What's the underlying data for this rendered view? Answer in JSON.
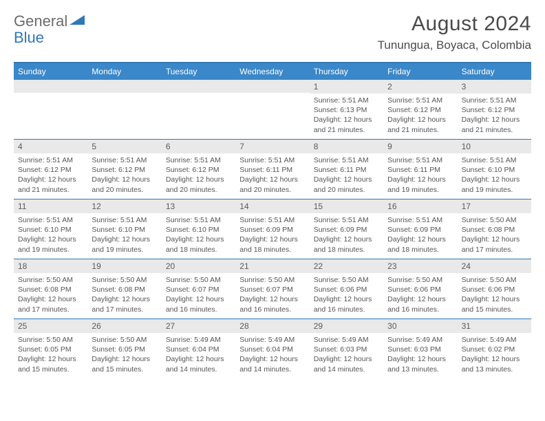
{
  "logo": {
    "general": "General",
    "blue": "Blue"
  },
  "title": {
    "month": "August 2024",
    "location": "Tunungua, Boyaca, Colombia"
  },
  "colors": {
    "brand_blue": "#3a87c9",
    "border_blue": "#2f78b8",
    "grey_band": "#e9e9e9",
    "text_grey": "#555555",
    "title_grey": "#4a4a4a"
  },
  "dow": [
    "Sunday",
    "Monday",
    "Tuesday",
    "Wednesday",
    "Thursday",
    "Friday",
    "Saturday"
  ],
  "weeks": [
    [
      null,
      null,
      null,
      null,
      {
        "n": "1",
        "sr": "Sunrise: 5:51 AM",
        "ss": "Sunset: 6:13 PM",
        "d1": "Daylight: 12 hours",
        "d2": "and 21 minutes."
      },
      {
        "n": "2",
        "sr": "Sunrise: 5:51 AM",
        "ss": "Sunset: 6:12 PM",
        "d1": "Daylight: 12 hours",
        "d2": "and 21 minutes."
      },
      {
        "n": "3",
        "sr": "Sunrise: 5:51 AM",
        "ss": "Sunset: 6:12 PM",
        "d1": "Daylight: 12 hours",
        "d2": "and 21 minutes."
      }
    ],
    [
      {
        "n": "4",
        "sr": "Sunrise: 5:51 AM",
        "ss": "Sunset: 6:12 PM",
        "d1": "Daylight: 12 hours",
        "d2": "and 21 minutes."
      },
      {
        "n": "5",
        "sr": "Sunrise: 5:51 AM",
        "ss": "Sunset: 6:12 PM",
        "d1": "Daylight: 12 hours",
        "d2": "and 20 minutes."
      },
      {
        "n": "6",
        "sr": "Sunrise: 5:51 AM",
        "ss": "Sunset: 6:12 PM",
        "d1": "Daylight: 12 hours",
        "d2": "and 20 minutes."
      },
      {
        "n": "7",
        "sr": "Sunrise: 5:51 AM",
        "ss": "Sunset: 6:11 PM",
        "d1": "Daylight: 12 hours",
        "d2": "and 20 minutes."
      },
      {
        "n": "8",
        "sr": "Sunrise: 5:51 AM",
        "ss": "Sunset: 6:11 PM",
        "d1": "Daylight: 12 hours",
        "d2": "and 20 minutes."
      },
      {
        "n": "9",
        "sr": "Sunrise: 5:51 AM",
        "ss": "Sunset: 6:11 PM",
        "d1": "Daylight: 12 hours",
        "d2": "and 19 minutes."
      },
      {
        "n": "10",
        "sr": "Sunrise: 5:51 AM",
        "ss": "Sunset: 6:10 PM",
        "d1": "Daylight: 12 hours",
        "d2": "and 19 minutes."
      }
    ],
    [
      {
        "n": "11",
        "sr": "Sunrise: 5:51 AM",
        "ss": "Sunset: 6:10 PM",
        "d1": "Daylight: 12 hours",
        "d2": "and 19 minutes."
      },
      {
        "n": "12",
        "sr": "Sunrise: 5:51 AM",
        "ss": "Sunset: 6:10 PM",
        "d1": "Daylight: 12 hours",
        "d2": "and 19 minutes."
      },
      {
        "n": "13",
        "sr": "Sunrise: 5:51 AM",
        "ss": "Sunset: 6:10 PM",
        "d1": "Daylight: 12 hours",
        "d2": "and 18 minutes."
      },
      {
        "n": "14",
        "sr": "Sunrise: 5:51 AM",
        "ss": "Sunset: 6:09 PM",
        "d1": "Daylight: 12 hours",
        "d2": "and 18 minutes."
      },
      {
        "n": "15",
        "sr": "Sunrise: 5:51 AM",
        "ss": "Sunset: 6:09 PM",
        "d1": "Daylight: 12 hours",
        "d2": "and 18 minutes."
      },
      {
        "n": "16",
        "sr": "Sunrise: 5:51 AM",
        "ss": "Sunset: 6:09 PM",
        "d1": "Daylight: 12 hours",
        "d2": "and 18 minutes."
      },
      {
        "n": "17",
        "sr": "Sunrise: 5:50 AM",
        "ss": "Sunset: 6:08 PM",
        "d1": "Daylight: 12 hours",
        "d2": "and 17 minutes."
      }
    ],
    [
      {
        "n": "18",
        "sr": "Sunrise: 5:50 AM",
        "ss": "Sunset: 6:08 PM",
        "d1": "Daylight: 12 hours",
        "d2": "and 17 minutes."
      },
      {
        "n": "19",
        "sr": "Sunrise: 5:50 AM",
        "ss": "Sunset: 6:08 PM",
        "d1": "Daylight: 12 hours",
        "d2": "and 17 minutes."
      },
      {
        "n": "20",
        "sr": "Sunrise: 5:50 AM",
        "ss": "Sunset: 6:07 PM",
        "d1": "Daylight: 12 hours",
        "d2": "and 16 minutes."
      },
      {
        "n": "21",
        "sr": "Sunrise: 5:50 AM",
        "ss": "Sunset: 6:07 PM",
        "d1": "Daylight: 12 hours",
        "d2": "and 16 minutes."
      },
      {
        "n": "22",
        "sr": "Sunrise: 5:50 AM",
        "ss": "Sunset: 6:06 PM",
        "d1": "Daylight: 12 hours",
        "d2": "and 16 minutes."
      },
      {
        "n": "23",
        "sr": "Sunrise: 5:50 AM",
        "ss": "Sunset: 6:06 PM",
        "d1": "Daylight: 12 hours",
        "d2": "and 16 minutes."
      },
      {
        "n": "24",
        "sr": "Sunrise: 5:50 AM",
        "ss": "Sunset: 6:06 PM",
        "d1": "Daylight: 12 hours",
        "d2": "and 15 minutes."
      }
    ],
    [
      {
        "n": "25",
        "sr": "Sunrise: 5:50 AM",
        "ss": "Sunset: 6:05 PM",
        "d1": "Daylight: 12 hours",
        "d2": "and 15 minutes."
      },
      {
        "n": "26",
        "sr": "Sunrise: 5:50 AM",
        "ss": "Sunset: 6:05 PM",
        "d1": "Daylight: 12 hours",
        "d2": "and 15 minutes."
      },
      {
        "n": "27",
        "sr": "Sunrise: 5:49 AM",
        "ss": "Sunset: 6:04 PM",
        "d1": "Daylight: 12 hours",
        "d2": "and 14 minutes."
      },
      {
        "n": "28",
        "sr": "Sunrise: 5:49 AM",
        "ss": "Sunset: 6:04 PM",
        "d1": "Daylight: 12 hours",
        "d2": "and 14 minutes."
      },
      {
        "n": "29",
        "sr": "Sunrise: 5:49 AM",
        "ss": "Sunset: 6:03 PM",
        "d1": "Daylight: 12 hours",
        "d2": "and 14 minutes."
      },
      {
        "n": "30",
        "sr": "Sunrise: 5:49 AM",
        "ss": "Sunset: 6:03 PM",
        "d1": "Daylight: 12 hours",
        "d2": "and 13 minutes."
      },
      {
        "n": "31",
        "sr": "Sunrise: 5:49 AM",
        "ss": "Sunset: 6:02 PM",
        "d1": "Daylight: 12 hours",
        "d2": "and 13 minutes."
      }
    ]
  ]
}
